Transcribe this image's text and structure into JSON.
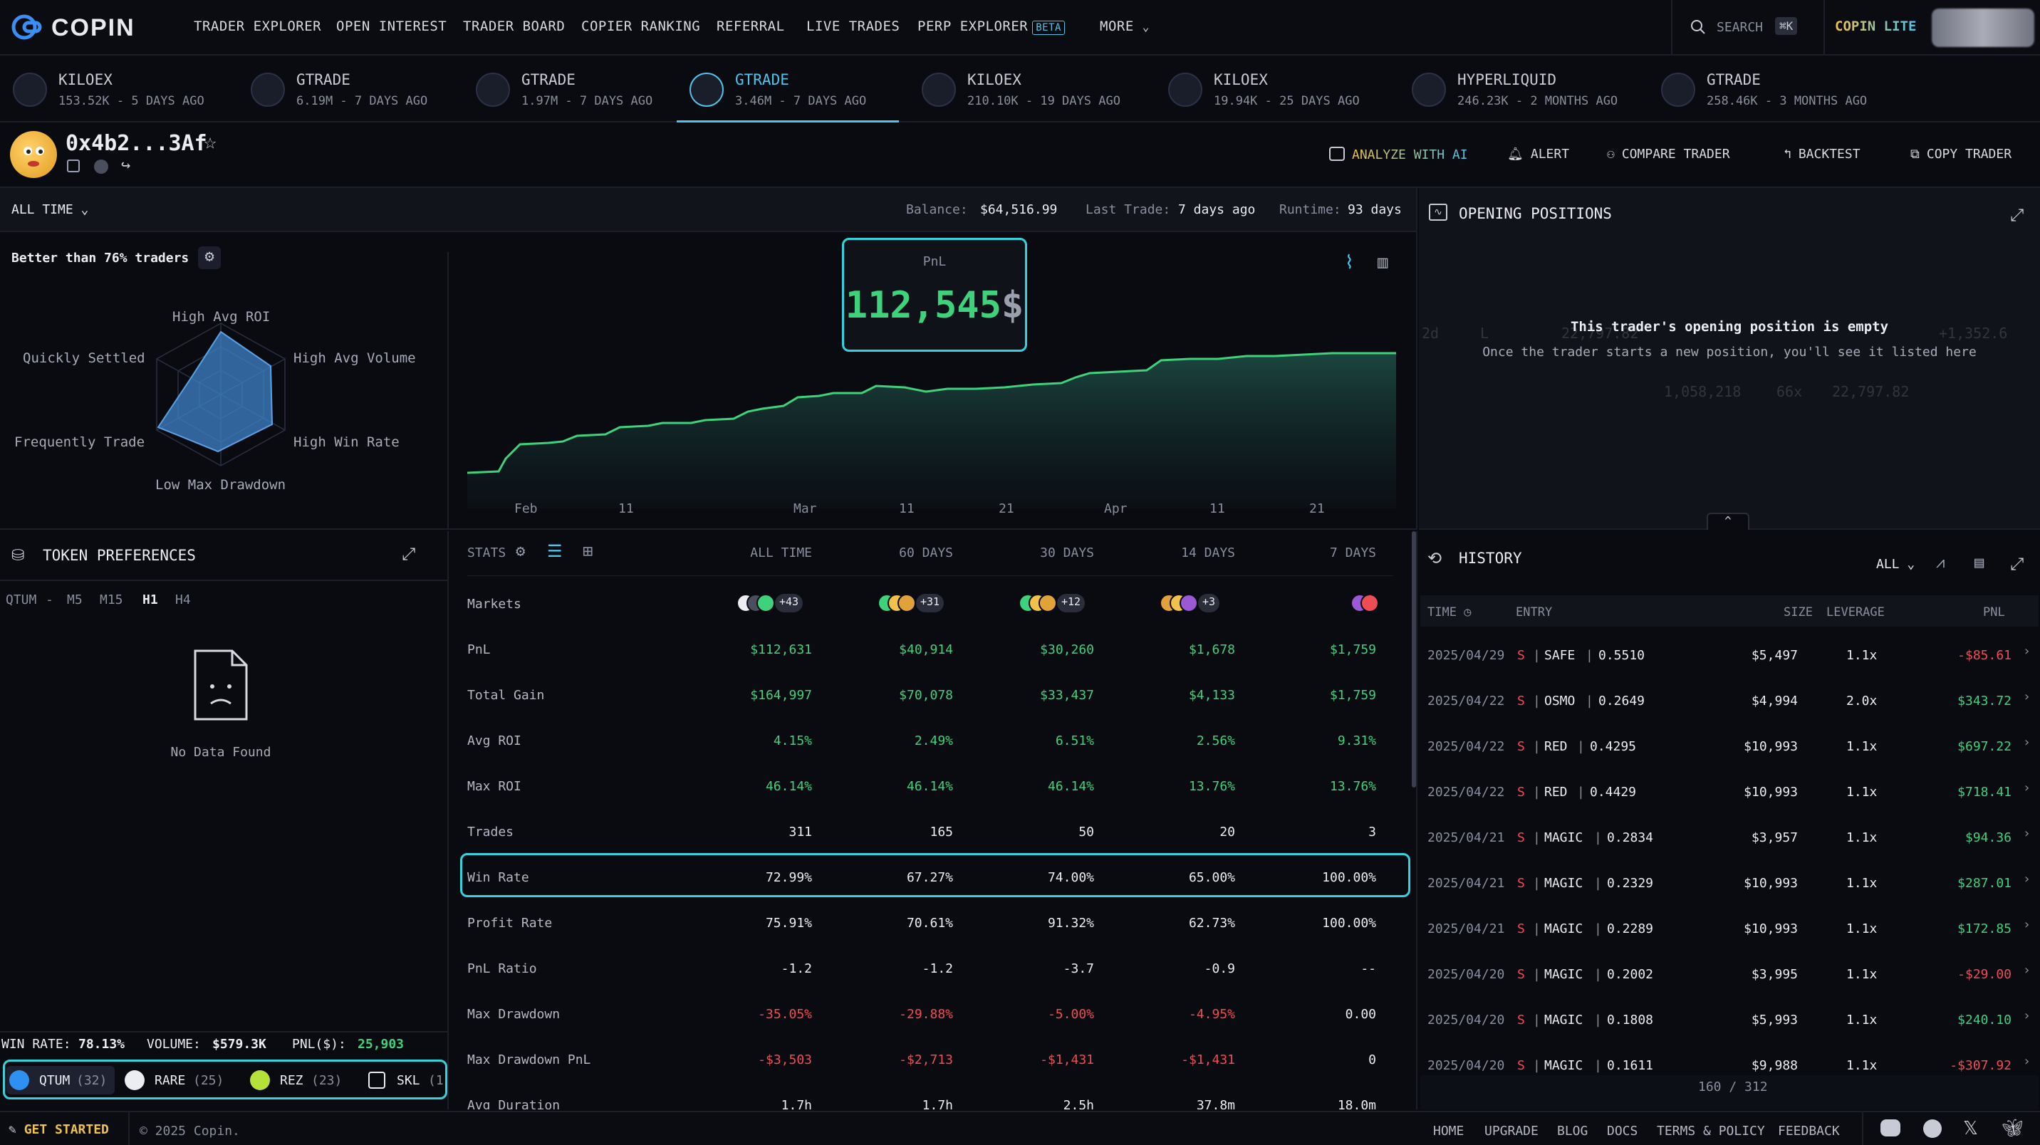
{
  "nav": {
    "brand": "COPIN",
    "items": [
      "TRADER EXPLORER",
      "OPEN INTEREST",
      "TRADER BOARD",
      "COPIER RANKING",
      "REFERRAL",
      "LIVE TRADES",
      "PERP EXPLORER"
    ],
    "beta": "BETA",
    "more": "MORE",
    "search": "SEARCH",
    "shortcut": "⌘K",
    "lite": "COPIN LITE"
  },
  "tabs": [
    {
      "name": "KILOEX",
      "sub": "153.52K - 5 DAYS AGO"
    },
    {
      "name": "GTRADE",
      "sub": "6.19M - 7 DAYS AGO"
    },
    {
      "name": "GTRADE",
      "sub": "1.97M - 7 DAYS AGO"
    },
    {
      "name": "GTRADE",
      "sub": "3.46M - 7 DAYS AGO"
    },
    {
      "name": "KILOEX",
      "sub": "210.10K - 19 DAYS AGO"
    },
    {
      "name": "KILOEX",
      "sub": "19.94K - 25 DAYS AGO"
    },
    {
      "name": "HYPERLIQUID",
      "sub": "246.23K - 2 MONTHS AGO"
    },
    {
      "name": "GTRADE",
      "sub": "258.46K - 3 MONTHS AGO"
    }
  ],
  "profile": {
    "address": "0x4b2...3Af",
    "actions": [
      "ANALYZE WITH AI",
      "ALERT",
      "COMPARE TRADER",
      "BACKTEST",
      "COPY TRADER"
    ]
  },
  "overview": {
    "period": "ALL TIME",
    "balance_label": "Balance:",
    "balance": "$64,516.99",
    "last_trade_label": "Last Trade:",
    "last_trade": "7 days ago",
    "runtime_label": "Runtime:",
    "runtime": "93 days",
    "better_than": "Better than 76% traders",
    "radar_labels": [
      "High Avg ROI",
      "High Avg Volume",
      "High Win Rate",
      "Low Max Drawdown",
      "Frequently Trade",
      "Quickly Settled"
    ],
    "pnl_label": "PnL",
    "pnl_value": "112,545",
    "pnl_unit": "$",
    "x_ticks": [
      "Feb",
      "11",
      "Mar",
      "11",
      "21",
      "Apr",
      "11",
      "21"
    ]
  },
  "positions": {
    "title": "OPENING POSITIONS",
    "empty_title": "This trader's opening position is empty",
    "empty_sub": "Once the trader starts a new position, you'll see it listed here",
    "ghost": [
      "2d",
      "L",
      "22,797.82",
      "+1,352.6",
      "1,058,218",
      "66x",
      "22,797.82"
    ]
  },
  "tokens": {
    "title": "TOKEN PREFERENCES",
    "token": "QTUM",
    "dash": "-",
    "intervals": [
      "M5",
      "M15",
      "H1",
      "H4"
    ],
    "no_data": "No Data Found",
    "winrate_label": "WIN RATE:",
    "winrate": "78.13%",
    "volume_label": "VOLUME:",
    "volume": "$579.3K",
    "pnl_label": "PNL($):",
    "pnl": "25,903",
    "chips": [
      {
        "name": "QTUM",
        "count": "(32)"
      },
      {
        "name": "RARE",
        "count": "(25)"
      },
      {
        "name": "REZ",
        "count": "(23)"
      },
      {
        "name": "SKL",
        "count": "(1"
      }
    ]
  },
  "stats": {
    "title": "STATS",
    "columns": [
      "ALL TIME",
      "60 DAYS",
      "30 DAYS",
      "14 DAYS",
      "7 DAYS"
    ],
    "markets_label": "Markets",
    "markets_extra": [
      "+43",
      "+31",
      "+12",
      "+3",
      ""
    ],
    "rows": [
      {
        "label": "PnL",
        "values": [
          "$112,631",
          "$40,914",
          "$30,260",
          "$1,678",
          "$1,759"
        ],
        "tone": "g"
      },
      {
        "label": "Total Gain",
        "values": [
          "$164,997",
          "$70,078",
          "$33,437",
          "$4,133",
          "$1,759"
        ],
        "tone": "g"
      },
      {
        "label": "Avg ROI",
        "values": [
          "4.15%",
          "2.49%",
          "6.51%",
          "2.56%",
          "9.31%"
        ],
        "tone": "g"
      },
      {
        "label": "Max ROI",
        "values": [
          "46.14%",
          "46.14%",
          "46.14%",
          "13.76%",
          "13.76%"
        ],
        "tone": "g"
      },
      {
        "label": "Trades",
        "values": [
          "311",
          "165",
          "50",
          "20",
          "3"
        ],
        "tone": "w"
      },
      {
        "label": "Win Rate",
        "values": [
          "72.99%",
          "67.27%",
          "74.00%",
          "65.00%",
          "100.00%"
        ],
        "tone": "w"
      },
      {
        "label": "Profit Rate",
        "values": [
          "75.91%",
          "70.61%",
          "91.32%",
          "62.73%",
          "100.00%"
        ],
        "tone": "w"
      },
      {
        "label": "PnL Ratio",
        "values": [
          "-1.2",
          "-1.2",
          "-3.7",
          "-0.9",
          "--"
        ],
        "tone": "w"
      },
      {
        "label": "Max Drawdown",
        "values": [
          "-35.05%",
          "-29.88%",
          "-5.00%",
          "-4.95%",
          "0.00"
        ],
        "tone": "r",
        "last_tone": "w"
      },
      {
        "label": "Max Drawdown PnL",
        "values": [
          "-$3,503",
          "-$2,713",
          "-$1,431",
          "-$1,431",
          "0"
        ],
        "tone": "r",
        "last_tone": "w"
      },
      {
        "label": "Avg Duration",
        "values": [
          "1.7h",
          "1.7h",
          "2.5h",
          "37.8m",
          "18.0m"
        ],
        "tone": "w"
      }
    ]
  },
  "history": {
    "title": "HISTORY",
    "filter": "ALL",
    "columns": [
      "TIME",
      "ENTRY",
      "SIZE",
      "LEVERAGE",
      "PNL"
    ],
    "rows": [
      {
        "date": "2025/04/29",
        "side": "S",
        "token": "SAFE",
        "price": "0.5510",
        "size": "$5,497",
        "lev": "1.1x",
        "pnl": "-$85.61",
        "tone": "r"
      },
      {
        "date": "2025/04/22",
        "side": "S",
        "token": "OSMO",
        "price": "0.2649",
        "size": "$4,994",
        "lev": "2.0x",
        "pnl": "$343.72",
        "tone": "g"
      },
      {
        "date": "2025/04/22",
        "side": "S",
        "token": "RED",
        "price": "0.4295",
        "size": "$10,993",
        "lev": "1.1x",
        "pnl": "$697.22",
        "tone": "g"
      },
      {
        "date": "2025/04/22",
        "side": "S",
        "token": "RED",
        "price": "0.4429",
        "size": "$10,993",
        "lev": "1.1x",
        "pnl": "$718.41",
        "tone": "g"
      },
      {
        "date": "2025/04/21",
        "side": "S",
        "token": "MAGIC",
        "price": "0.2834",
        "size": "$3,957",
        "lev": "1.1x",
        "pnl": "$94.36",
        "tone": "g"
      },
      {
        "date": "2025/04/21",
        "side": "S",
        "token": "MAGIC",
        "price": "0.2329",
        "size": "$10,993",
        "lev": "1.1x",
        "pnl": "$287.01",
        "tone": "g"
      },
      {
        "date": "2025/04/21",
        "side": "S",
        "token": "MAGIC",
        "price": "0.2289",
        "size": "$10,993",
        "lev": "1.1x",
        "pnl": "$172.85",
        "tone": "g"
      },
      {
        "date": "2025/04/20",
        "side": "S",
        "token": "MAGIC",
        "price": "0.2002",
        "size": "$3,995",
        "lev": "1.1x",
        "pnl": "-$29.00",
        "tone": "r"
      },
      {
        "date": "2025/04/20",
        "side": "S",
        "token": "MAGIC",
        "price": "0.1808",
        "size": "$5,993",
        "lev": "1.1x",
        "pnl": "$240.10",
        "tone": "g"
      },
      {
        "date": "2025/04/20",
        "side": "S",
        "token": "MAGIC",
        "price": "0.1611",
        "size": "$9,988",
        "lev": "1.1x",
        "pnl": "-$307.92",
        "tone": "r"
      }
    ],
    "pagination": "160 / 312"
  },
  "footer": {
    "cta": "GET STARTED",
    "copyright": "© 2025 Copin.",
    "links": [
      "HOME",
      "UPGRADE",
      "BLOG",
      "DOCS",
      "TERMS & POLICY",
      "FEEDBACK"
    ]
  },
  "colors": {
    "accent": "#4ec4e8",
    "positive": "#3fd27c",
    "negative": "#ef4d56",
    "bg": "#0a0b11"
  }
}
